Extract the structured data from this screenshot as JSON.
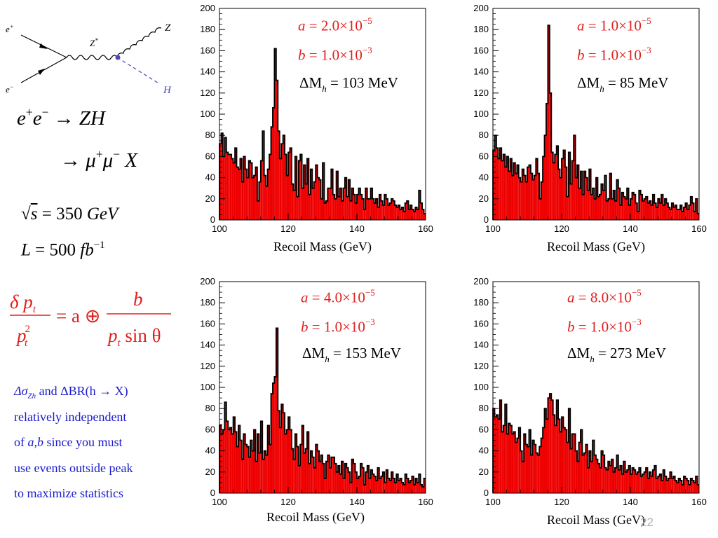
{
  "diagram": {
    "labels": {
      "e_plus": "e",
      "e_plus_sup": "+",
      "e_minus": "e",
      "e_minus_sup": "−",
      "zstar": "Z",
      "zstar_sup": "*",
      "z": "Z",
      "h": "H"
    },
    "colors": {
      "h_line": "#4a4ab8",
      "vertex": "#4a4ab8"
    }
  },
  "physics": {
    "process_line1": {
      "a": "e",
      "a_sup": "+",
      "b": "e",
      "b_sup": "−",
      "arrow": "→",
      "rhs": "ZH"
    },
    "process_line2": {
      "arrow": "→",
      "m1": "μ",
      "m1_sup": "+",
      "m2": "μ",
      "m2_sup": "−",
      "rhs": "X"
    },
    "energy": {
      "root": "√",
      "s": "s",
      "eq": " = 350 ",
      "unit": "GeV"
    },
    "lumi": {
      "L": "L",
      "eq": " = 500 ",
      "fb": "fb",
      "fb_sup": "−1"
    }
  },
  "resolution_formula": {
    "num": "δ p",
    "num_sub": "t",
    "den": "p",
    "den_sup": "2",
    "den_sub": "t",
    "rhs": "= a ⊕",
    "frac_num": "b",
    "frac_den": "p",
    "frac_den_sub": "t",
    "frac_den_rest": " sin θ",
    "color": "#e0201e"
  },
  "note": {
    "line1_sym": "Δσ",
    "line1_sub": "Zh",
    "line1_rest": " and ΔBR(h → X)",
    "line2": " relatively independent",
    "line3_a": "of ",
    "line3_ab": "a,b",
    "line3_rest": " since you must",
    "line4": "use events outside peak",
    "line5": "to maximize statistics",
    "color": "#1a1acc"
  },
  "page_number": "22",
  "chart_data": [
    {
      "type": "bar",
      "xlabel": "Recoil Mass (GeV)",
      "xlim": [
        100,
        160
      ],
      "ylim": [
        0,
        200
      ],
      "xticks": [
        100,
        120,
        140,
        160
      ],
      "yticks": [
        0,
        20,
        40,
        60,
        80,
        100,
        120,
        140,
        160,
        180,
        200
      ],
      "annotations": {
        "a_label": "a",
        "a_value": " = 2.0×10",
        "a_exp": "−5",
        "b_label": "b",
        "b_value": " = 1.0×10",
        "b_exp": "−3",
        "dm_label": "ΔM",
        "dm_sub": "h",
        "dm_value": " = 103 MeV"
      },
      "colors": {
        "fill": "#ee0000",
        "outline": "#000000"
      },
      "series": [
        {
          "values": [
            72,
            82,
            60,
            78,
            64,
            62,
            62,
            58,
            54,
            68,
            50,
            48,
            58,
            36,
            60,
            48,
            40,
            56,
            54,
            40,
            42,
            50,
            18,
            36,
            56,
            84,
            42,
            32,
            48,
            62,
            88,
            106,
            162,
            132,
            84,
            58,
            72,
            80,
            62,
            42,
            64,
            68,
            34,
            28,
            60,
            22,
            56,
            62,
            30,
            52,
            34,
            58,
            24,
            48,
            30,
            36,
            52,
            40,
            38,
            20,
            54,
            16,
            18,
            30,
            30,
            48,
            24,
            20,
            46,
            22,
            30,
            18,
            30,
            40,
            22,
            38,
            18,
            30,
            24,
            16,
            24,
            30,
            24,
            20,
            10,
            30,
            20,
            20,
            30,
            20,
            16,
            20,
            12,
            24,
            18,
            14,
            24,
            20,
            14,
            16,
            20,
            18,
            14,
            12,
            14,
            10,
            12,
            8,
            16,
            18,
            10,
            14,
            10,
            8,
            12,
            10,
            28,
            16,
            10,
            6
          ]
        },
        {
          "values": [
            0,
            0,
            0,
            0,
            0,
            0,
            0,
            0,
            0,
            0,
            0,
            0,
            0,
            0,
            0,
            0,
            0,
            0,
            0,
            0,
            0,
            0,
            0,
            0,
            0,
            0,
            0,
            0,
            0,
            0,
            0,
            0,
            0,
            0,
            0,
            0,
            0,
            0,
            0,
            0,
            0,
            0,
            0,
            0,
            0,
            0,
            0,
            0,
            0,
            0,
            0,
            0,
            0,
            0,
            0,
            0,
            0,
            0,
            0,
            0,
            0,
            0,
            0,
            0,
            0,
            0,
            0,
            0,
            0,
            0,
            0,
            0,
            0,
            0,
            0,
            0,
            0,
            0,
            0,
            0,
            0,
            0,
            0,
            0,
            0,
            0,
            0,
            0,
            0,
            0,
            0,
            0,
            0,
            0,
            0,
            0,
            0,
            0,
            0,
            0,
            0,
            0,
            0,
            0,
            0,
            0,
            0,
            0,
            0,
            0,
            0,
            0,
            0,
            0,
            0,
            0,
            0,
            0,
            0,
            0
          ]
        }
      ]
    },
    {
      "type": "bar",
      "xlabel": "Recoil Mass (GeV)",
      "xlim": [
        100,
        160
      ],
      "ylim": [
        0,
        200
      ],
      "xticks": [
        100,
        120,
        140,
        160
      ],
      "yticks": [
        0,
        20,
        40,
        60,
        80,
        100,
        120,
        140,
        160,
        180,
        200
      ],
      "annotations": {
        "a_label": "a",
        "a_value": " = 1.0×10",
        "a_exp": "−5",
        "b_label": "b",
        "b_value": " = 1.0×10",
        "b_exp": "−3",
        "dm_label": "ΔM",
        "dm_sub": "h",
        "dm_value": " = 85 MeV"
      },
      "colors": {
        "fill": "#ee0000",
        "outline": "#000000"
      },
      "series": [
        {
          "values": [
            66,
            80,
            68,
            58,
            68,
            56,
            62,
            50,
            60,
            46,
            58,
            42,
            54,
            44,
            52,
            40,
            36,
            48,
            42,
            36,
            50,
            52,
            44,
            38,
            42,
            58,
            44,
            20,
            36,
            60,
            80,
            110,
            184,
            120,
            64,
            54,
            62,
            70,
            48,
            40,
            58,
            66,
            50,
            22,
            64,
            34,
            56,
            80,
            40,
            52,
            30,
            46,
            24,
            46,
            40,
            28,
            48,
            24,
            30,
            20,
            40,
            22,
            24,
            34,
            28,
            42,
            18,
            20,
            44,
            20,
            28,
            18,
            38,
            30,
            14,
            26,
            22,
            20,
            30,
            14,
            20,
            26,
            24,
            16,
            8,
            28,
            24,
            18,
            20,
            22,
            16,
            18,
            14,
            24,
            16,
            12,
            20,
            16,
            24,
            14,
            20,
            16,
            12,
            10,
            16,
            12,
            14,
            10,
            10,
            14,
            8,
            12,
            16,
            10,
            14,
            22,
            16,
            8,
            20,
            6
          ]
        },
        {
          "values": [
            0,
            0,
            0,
            0,
            0,
            0,
            0,
            0,
            0,
            0,
            0,
            0,
            0,
            0,
            0,
            0,
            0,
            0,
            0,
            0,
            0,
            0,
            0,
            0,
            0,
            0,
            0,
            0,
            0,
            0,
            0,
            0,
            0,
            0,
            0,
            0,
            0,
            0,
            0,
            0,
            0,
            0,
            0,
            0,
            0,
            0,
            0,
            0,
            0,
            0,
            0,
            0,
            0,
            0,
            0,
            0,
            0,
            0,
            0,
            0,
            0,
            0,
            0,
            0,
            0,
            0,
            0,
            0,
            0,
            0,
            0,
            0,
            0,
            0,
            0,
            0,
            0,
            0,
            0,
            0,
            0,
            0,
            0,
            0,
            0,
            0,
            0,
            0,
            0,
            0,
            0,
            0,
            0,
            0,
            0,
            0,
            0,
            0,
            0,
            0,
            0,
            0,
            0,
            0,
            0,
            0,
            0,
            0,
            0,
            0,
            0,
            0,
            0,
            0,
            0,
            0,
            0,
            0,
            0,
            0
          ]
        }
      ]
    },
    {
      "type": "bar",
      "xlabel": "Recoil Mass (GeV)",
      "xlim": [
        100,
        160
      ],
      "ylim": [
        0,
        200
      ],
      "xticks": [
        100,
        120,
        140,
        160
      ],
      "yticks": [
        0,
        20,
        40,
        60,
        80,
        100,
        120,
        140,
        160,
        180,
        200
      ],
      "annotations": {
        "a_label": "a",
        "a_value": " = 4.0×10",
        "a_exp": "−5",
        "b_label": "b",
        "b_value": " = 1.0×10",
        "b_exp": "−3",
        "dm_label": "ΔM",
        "dm_sub": "h",
        "dm_value": " = 153 MeV"
      },
      "colors": {
        "fill": "#ee0000",
        "outline": "#000000"
      },
      "series": [
        {
          "values": [
            64,
            56,
            60,
            86,
            68,
            60,
            62,
            56,
            72,
            58,
            44,
            64,
            50,
            32,
            56,
            46,
            44,
            34,
            50,
            40,
            60,
            30,
            56,
            38,
            68,
            32,
            40,
            36,
            64,
            46,
            94,
            104,
            110,
            156,
            78,
            62,
            84,
            76,
            56,
            60,
            72,
            60,
            42,
            32,
            56,
            44,
            26,
            46,
            64,
            38,
            42,
            58,
            28,
            40,
            34,
            24,
            46,
            40,
            30,
            36,
            28,
            14,
            30,
            36,
            24,
            34,
            34,
            28,
            20,
            26,
            18,
            30,
            14,
            28,
            24,
            20,
            10,
            32,
            28,
            20,
            14,
            16,
            28,
            24,
            8,
            20,
            26,
            14,
            22,
            18,
            16,
            12,
            24,
            14,
            16,
            20,
            10,
            22,
            14,
            12,
            20,
            14,
            10,
            18,
            12,
            14,
            10,
            8,
            18,
            14,
            10,
            12,
            16,
            8,
            14,
            10,
            18,
            8,
            6,
            14
          ]
        },
        {
          "values": [
            0,
            0,
            0,
            0,
            0,
            0,
            0,
            0,
            0,
            0,
            0,
            0,
            0,
            0,
            0,
            0,
            0,
            0,
            0,
            0,
            0,
            0,
            0,
            0,
            0,
            0,
            0,
            0,
            0,
            0,
            0,
            0,
            0,
            0,
            0,
            0,
            0,
            0,
            0,
            0,
            0,
            0,
            0,
            0,
            0,
            0,
            0,
            0,
            0,
            0,
            0,
            0,
            0,
            0,
            0,
            0,
            0,
            0,
            0,
            0,
            0,
            0,
            0,
            0,
            0,
            0,
            0,
            0,
            0,
            0,
            0,
            0,
            0,
            0,
            0,
            0,
            0,
            0,
            0,
            0,
            0,
            0,
            0,
            0,
            0,
            0,
            0,
            0,
            0,
            0,
            0,
            0,
            0,
            0,
            0,
            0,
            0,
            0,
            0,
            0,
            0,
            0,
            0,
            0,
            0,
            0,
            0,
            0,
            0,
            0,
            0,
            0,
            0,
            0,
            0,
            0,
            0,
            0,
            0,
            0
          ]
        }
      ]
    },
    {
      "type": "bar",
      "xlabel": "Recoil Mass (GeV)",
      "xlim": [
        100,
        160
      ],
      "ylim": [
        0,
        200
      ],
      "xticks": [
        100,
        120,
        140,
        160
      ],
      "yticks": [
        0,
        20,
        40,
        60,
        80,
        100,
        120,
        140,
        160,
        180,
        200
      ],
      "annotations": {
        "a_label": "a",
        "a_value": " = 8.0×10",
        "a_exp": "−5",
        "b_label": "b",
        "b_value": " = 1.0×10",
        "b_exp": "−3",
        "dm_label": "ΔM",
        "dm_sub": "h",
        "dm_value": " = 273 MeV"
      },
      "colors": {
        "fill": "#ee0000",
        "outline": "#000000"
      },
      "series": [
        {
          "values": [
            80,
            72,
            74,
            70,
            88,
            58,
            64,
            84,
            56,
            66,
            64,
            56,
            58,
            48,
            52,
            62,
            40,
            30,
            56,
            46,
            44,
            60,
            36,
            50,
            46,
            38,
            36,
            44,
            52,
            62,
            80,
            70,
            90,
            94,
            88,
            74,
            64,
            88,
            70,
            58,
            72,
            62,
            60,
            48,
            80,
            42,
            56,
            56,
            40,
            30,
            48,
            60,
            36,
            38,
            46,
            24,
            40,
            30,
            50,
            36,
            32,
            28,
            24,
            40,
            36,
            24,
            22,
            30,
            26,
            32,
            20,
            24,
            36,
            22,
            26,
            18,
            30,
            20,
            22,
            26,
            18,
            24,
            22,
            18,
            20,
            24,
            16,
            18,
            20,
            24,
            14,
            20,
            16,
            22,
            26,
            14,
            16,
            18,
            12,
            22,
            16,
            12,
            14,
            20,
            14,
            16,
            12,
            10,
            14,
            12,
            8,
            16,
            14,
            12,
            8,
            14,
            12,
            10,
            16,
            8
          ]
        },
        {
          "values": [
            0,
            0,
            0,
            0,
            0,
            0,
            0,
            0,
            0,
            0,
            0,
            0,
            0,
            0,
            0,
            0,
            0,
            0,
            0,
            0,
            0,
            0,
            0,
            0,
            0,
            0,
            0,
            0,
            0,
            0,
            0,
            0,
            0,
            0,
            0,
            0,
            0,
            0,
            0,
            0,
            0,
            0,
            0,
            0,
            0,
            0,
            0,
            0,
            0,
            0,
            0,
            0,
            0,
            0,
            0,
            0,
            0,
            0,
            0,
            0,
            0,
            0,
            0,
            0,
            0,
            0,
            0,
            0,
            0,
            0,
            0,
            0,
            0,
            0,
            0,
            0,
            0,
            0,
            0,
            0,
            0,
            0,
            0,
            0,
            0,
            0,
            0,
            0,
            0,
            0,
            0,
            0,
            0,
            0,
            0,
            0,
            0,
            0,
            0,
            0,
            0,
            0,
            0,
            0,
            0,
            0,
            0,
            0,
            0,
            0,
            0,
            0,
            0,
            0,
            0,
            0,
            0,
            0,
            0,
            0
          ]
        }
      ]
    }
  ]
}
